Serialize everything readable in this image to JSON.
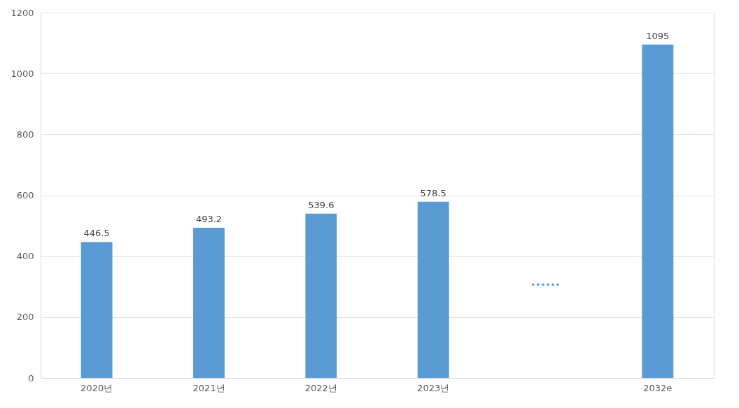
{
  "chart_data": {
    "type": "bar",
    "categories": [
      "2020년",
      "2021년",
      "2022년",
      "2023년",
      null,
      "2032e"
    ],
    "values": [
      446.5,
      493.2,
      539.6,
      578.5,
      null,
      1095
    ],
    "color": "#5b9bd5",
    "data_labels": true,
    "ylim": [
      0,
      1200
    ],
    "yticks": [
      0,
      200,
      400,
      600,
      800,
      1000,
      1200
    ],
    "grid": "y",
    "annotations": [
      "••••••"
    ]
  }
}
